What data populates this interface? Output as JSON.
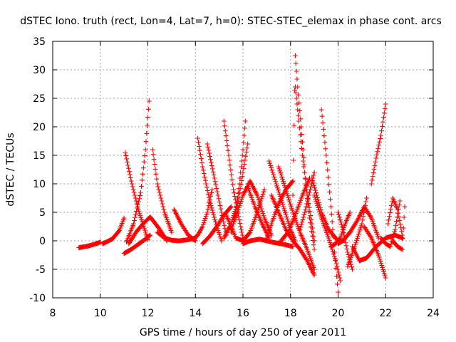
{
  "chart_data": {
    "type": "scatter",
    "title": "dSTEC Iono. truth (rect, Lon=4, Lat=7, h=0): STEC-STEC_elemax in phase cont. arcs",
    "xlabel": "GPS time / hours of day 250 of year 2011",
    "ylabel": "dSTEC  / TECUs",
    "xlim": [
      8,
      24
    ],
    "ylim": [
      -10,
      35
    ],
    "xticks": [
      8,
      10,
      12,
      14,
      16,
      18,
      20,
      22,
      24
    ],
    "yticks": [
      -10,
      -5,
      0,
      5,
      10,
      15,
      20,
      25,
      30,
      35
    ],
    "grid": true,
    "marker": "+",
    "color": "#ff0000",
    "arcs": [
      {
        "x": [
          9.1,
          9.5,
          9.9,
          10.0
        ],
        "y": [
          -1.2,
          -0.9,
          -0.4,
          -0.2
        ]
      },
      {
        "x": [
          10.1,
          10.5,
          10.8,
          11.0
        ],
        "y": [
          -0.5,
          0.3,
          1.8,
          4.0
        ]
      },
      {
        "x": [
          11.05,
          11.3,
          11.6,
          11.9,
          12.0
        ],
        "y": [
          15.5,
          10.5,
          5.5,
          1.5,
          0.2
        ]
      },
      {
        "x": [
          11.0,
          11.3,
          11.6,
          11.9,
          12.1
        ],
        "y": [
          -2.2,
          -1.5,
          -0.6,
          0.3,
          1.0
        ]
      },
      {
        "x": [
          11.1,
          11.4,
          11.7,
          11.9,
          12.05
        ],
        "y": [
          -0.2,
          3.0,
          8.5,
          16.0,
          24.5
        ]
      },
      {
        "x": [
          11.2,
          11.5,
          11.8,
          12.1,
          12.5,
          12.8
        ],
        "y": [
          -0.5,
          1.5,
          3.0,
          4.2,
          2.0,
          0.0
        ]
      },
      {
        "x": [
          12.2,
          12.4,
          12.7,
          13.0
        ],
        "y": [
          16.0,
          10.0,
          5.0,
          1.5
        ]
      },
      {
        "x": [
          12.4,
          12.7,
          13.0,
          13.3,
          13.7,
          14.0
        ],
        "y": [
          1.5,
          0.5,
          0.1,
          0.0,
          0.2,
          0.5
        ]
      },
      {
        "x": [
          13.1,
          13.4,
          13.7,
          14.0
        ],
        "y": [
          5.5,
          3.0,
          1.0,
          0.0
        ]
      },
      {
        "x": [
          13.9,
          14.1,
          14.3,
          14.5,
          14.7
        ],
        "y": [
          0.2,
          1.0,
          2.5,
          5.0,
          9.0
        ]
      },
      {
        "x": [
          14.1,
          14.3,
          14.6,
          14.9,
          15.1
        ],
        "y": [
          18.0,
          13.0,
          7.0,
          2.5,
          0.0
        ]
      },
      {
        "x": [
          14.3,
          14.6,
          14.9,
          15.2,
          15.5
        ],
        "y": [
          -0.5,
          0.8,
          2.5,
          4.5,
          6.0
        ]
      },
      {
        "x": [
          14.5,
          14.8,
          15.1,
          15.3
        ],
        "y": [
          17.0,
          11.0,
          5.0,
          1.0
        ]
      },
      {
        "x": [
          15.2,
          15.4,
          15.6,
          15.9,
          16.0
        ],
        "y": [
          21.0,
          15.0,
          9.0,
          2.5,
          0.5
        ]
      },
      {
        "x": [
          15.2,
          15.5,
          15.8,
          16.0,
          16.2
        ],
        "y": [
          0.5,
          3.0,
          7.0,
          12.0,
          17.0
        ]
      },
      {
        "x": [
          15.5,
          15.7,
          15.85,
          16.0,
          16.1
        ],
        "y": [
          1.5,
          5.0,
          10.0,
          16.0,
          21.0
        ]
      },
      {
        "x": [
          15.3,
          15.7,
          16.0,
          16.3,
          16.6,
          16.9
        ],
        "y": [
          4.5,
          0.5,
          0.0,
          1.5,
          5.0,
          9.0
        ]
      },
      {
        "x": [
          15.6,
          16.0,
          16.3,
          16.6,
          16.9,
          17.2
        ],
        "y": [
          3.0,
          8.0,
          10.5,
          8.0,
          4.0,
          1.0
        ]
      },
      {
        "x": [
          16.2,
          16.5,
          16.8,
          17.1
        ],
        "y": [
          9.5,
          6.0,
          3.0,
          0.5
        ]
      },
      {
        "x": [
          16.0,
          16.3,
          16.7,
          17.0,
          17.3,
          17.6,
          17.9,
          18.1
        ],
        "y": [
          -0.5,
          0.0,
          0.3,
          0.0,
          -0.3,
          -0.5,
          -0.8,
          -1.0
        ]
      },
      {
        "x": [
          17.0,
          17.2,
          17.5,
          17.8,
          18.1
        ],
        "y": [
          0.5,
          3.0,
          6.5,
          9.0,
          10.5
        ]
      },
      {
        "x": [
          17.1,
          17.4,
          17.7,
          18.0,
          18.2
        ],
        "y": [
          14.0,
          10.0,
          6.0,
          2.0,
          0.0
        ]
      },
      {
        "x": [
          17.2,
          17.5,
          17.8,
          18.1,
          18.4,
          18.7,
          19.0
        ],
        "y": [
          8.0,
          5.0,
          2.0,
          0.0,
          -1.5,
          -3.5,
          -6.0
        ]
      },
      {
        "x": [
          17.5,
          17.8,
          18.1,
          18.4,
          18.7,
          19.0
        ],
        "y": [
          13.0,
          9.0,
          5.0,
          1.5,
          -1.5,
          -5.0
        ]
      },
      {
        "x": [
          17.6,
          17.9,
          18.2,
          18.5,
          18.8
        ],
        "y": [
          0.0,
          1.5,
          4.5,
          8.0,
          11.0
        ]
      },
      {
        "x": [
          18.1,
          18.2,
          18.3,
          18.45,
          18.6,
          18.8,
          19.0
        ],
        "y": [
          8.0,
          32.5,
          27.0,
          20.0,
          12.0,
          4.0,
          -1.5
        ]
      },
      {
        "x": [
          18.2,
          18.35,
          18.5,
          18.7,
          18.9,
          19.0
        ],
        "y": [
          27.0,
          21.0,
          15.0,
          8.0,
          3.0,
          0.0
        ]
      },
      {
        "x": [
          18.4,
          18.6,
          18.8,
          19.0
        ],
        "y": [
          2.0,
          5.0,
          8.5,
          12.0
        ]
      },
      {
        "x": [
          18.9,
          19.1,
          19.3,
          19.6,
          19.9,
          20.0
        ],
        "y": [
          11.0,
          8.0,
          5.0,
          2.0,
          0.5,
          0.0
        ]
      },
      {
        "x": [
          19.3,
          19.5,
          19.7,
          19.85,
          20.0
        ],
        "y": [
          23.0,
          15.0,
          6.0,
          -2.0,
          -9.0
        ]
      },
      {
        "x": [
          19.0,
          19.3,
          19.6,
          19.9,
          20.1
        ],
        "y": [
          8.0,
          4.0,
          0.5,
          -3.5,
          -7.0
        ]
      },
      {
        "x": [
          19.7,
          19.9,
          20.1,
          20.3,
          20.5
        ],
        "y": [
          -1.0,
          -0.5,
          0.5,
          3.0,
          5.0
        ]
      },
      {
        "x": [
          20.0,
          20.2,
          20.5,
          20.8,
          21.1,
          21.4,
          21.7
        ],
        "y": [
          -0.5,
          0.0,
          1.5,
          3.5,
          6.0,
          4.0,
          0.5
        ]
      },
      {
        "x": [
          20.0,
          20.2,
          20.4,
          20.6
        ],
        "y": [
          5.0,
          2.0,
          -2.0,
          -5.0
        ]
      },
      {
        "x": [
          20.4,
          20.7,
          21.0,
          21.2
        ],
        "y": [
          -4.5,
          -1.0,
          3.0,
          7.5
        ]
      },
      {
        "x": [
          20.6,
          20.9,
          21.2,
          21.6,
          22.0,
          22.4,
          22.7
        ],
        "y": [
          -1.0,
          -3.5,
          -3.0,
          -1.0,
          0.5,
          1.0,
          0.5
        ]
      },
      {
        "x": [
          21.4,
          21.6,
          21.8,
          22.0
        ],
        "y": [
          10.0,
          14.5,
          18.5,
          24.0
        ]
      },
      {
        "x": [
          21.1,
          21.4,
          21.7,
          22.0
        ],
        "y": [
          2.5,
          0.5,
          -2.5,
          -6.5
        ]
      },
      {
        "x": [
          21.8,
          22.0,
          22.2,
          22.4,
          22.6
        ],
        "y": [
          0.5,
          -0.5,
          -1.0,
          2.0,
          7.0
        ]
      },
      {
        "x": [
          22.1,
          22.3,
          22.5,
          22.7
        ],
        "y": [
          3.0,
          7.5,
          5.5,
          1.0
        ]
      },
      {
        "x": [
          22.3,
          22.5,
          22.7,
          22.8
        ],
        "y": [
          0.0,
          -1.0,
          -1.5,
          6.0
        ]
      }
    ]
  }
}
